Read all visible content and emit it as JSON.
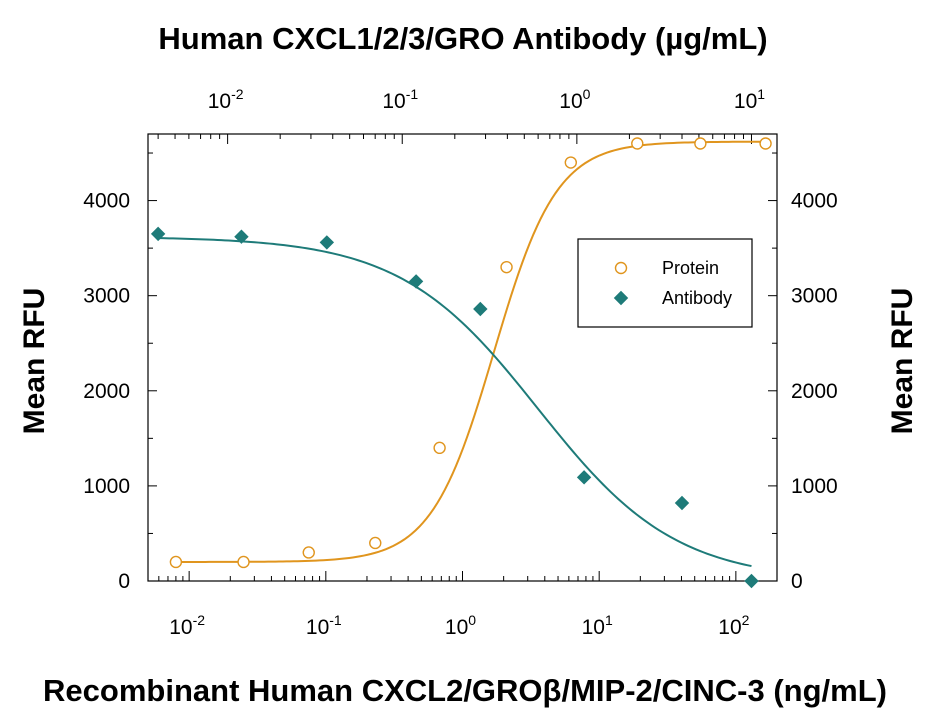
{
  "chart_data": {
    "type": "scatter",
    "title": "Human CXCL1/2/3/GRO Antibody (µg/mL)",
    "xlabel": "Recombinant Human CXCL2/GROβ/MIP-2/CINC-3 (ng/mL)",
    "ylabel": "Mean RFU",
    "ylabel_right": "Mean RFU",
    "xscale": "log",
    "x_bottom_lim": [
      0.005,
      200
    ],
    "x_top_lim": [
      0.0035,
      14
    ],
    "ylim": [
      0,
      4700
    ],
    "yticks": [
      0,
      1000,
      2000,
      3000,
      4000
    ],
    "x_bottom_ticks": [
      {
        "base": "10",
        "exp": "-2",
        "value": 0.01
      },
      {
        "base": "10",
        "exp": "-1",
        "value": 0.1
      },
      {
        "base": "10",
        "exp": "0",
        "value": 1
      },
      {
        "base": "10",
        "exp": "1",
        "value": 10
      },
      {
        "base": "10",
        "exp": "2",
        "value": 100
      }
    ],
    "x_top_ticks": [
      {
        "base": "10",
        "exp": "-2",
        "value": 0.01
      },
      {
        "base": "10",
        "exp": "-1",
        "value": 0.1
      },
      {
        "base": "10",
        "exp": "0",
        "value": 1
      },
      {
        "base": "10",
        "exp": "1",
        "value": 10
      }
    ],
    "legend_position": "upper-right",
    "series": [
      {
        "name": "Protein",
        "axis": "bottom",
        "color": "#e0951e",
        "marker": "open-circle",
        "x": [
          0.008,
          0.025,
          0.075,
          0.23,
          0.68,
          2.1,
          6.2,
          19,
          55,
          165
        ],
        "y": [
          200,
          200,
          300,
          400,
          1400,
          3300,
          4400,
          4600,
          4600,
          4600
        ],
        "fit": {
          "bottom": 200,
          "top": 4620,
          "ec50": 1.7,
          "hill": 1.9
        }
      },
      {
        "name": "Antibody",
        "axis": "top",
        "color": "#1e7b79",
        "marker": "filled-diamond",
        "x": [
          0.004,
          0.012,
          0.037,
          0.12,
          0.28,
          1.1,
          4.0,
          10
        ],
        "y": [
          3650,
          3620,
          3560,
          3150,
          2860,
          1090,
          820,
          0
        ],
        "fit": {
          "bottom": 0,
          "top": 3620,
          "ec50": 0.6,
          "hill": 1.1
        }
      }
    ]
  }
}
